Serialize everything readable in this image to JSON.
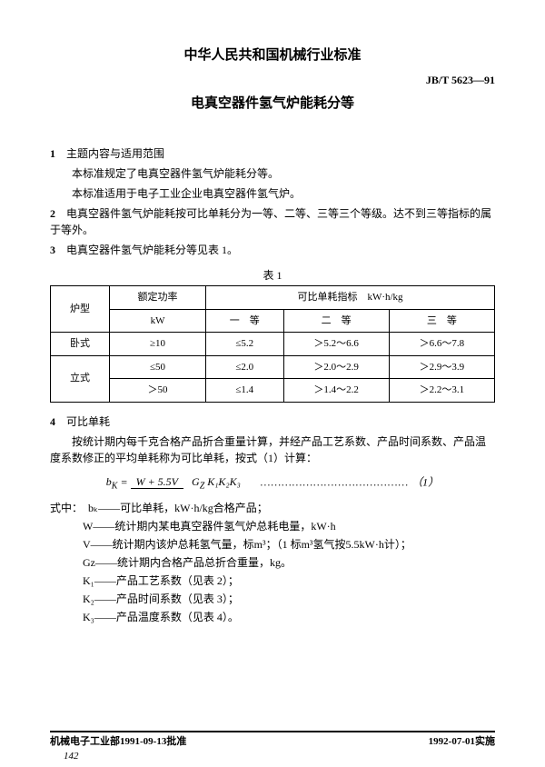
{
  "header": {
    "org_title": "中华人民共和国机械行业标准",
    "standard_code": "JB/T 5623—91",
    "doc_title": "电真空器件氢气炉能耗分等"
  },
  "sections": {
    "s1_num": "1",
    "s1_title": "主题内容与适用范围",
    "s1_p1": "本标准规定了电真空器件氢气炉能耗分等。",
    "s1_p2": "本标准适用于电子工业企业电真空器件氢气炉。",
    "s2_num": "2",
    "s2_text": "电真空器件氢气炉能耗按可比单耗分为一等、二等、三等三个等级。达不到三等指标的属于等外。",
    "s3_num": "3",
    "s3_text": "电真空器件氢气炉能耗分等见表 1。",
    "s4_num": "4",
    "s4_title": "可比单耗",
    "s4_p": "按统计期内每千克合格产品折合重量计算，并经产品工艺系数、产品时间系数、产品温度系数修正的平均单耗称为可比单耗，按式（1）计算："
  },
  "table": {
    "caption": "表 1",
    "h_furnace": "炉型",
    "h_power": "额定功率",
    "h_power_unit": "kW",
    "h_index": "可比单耗指标　kW·h/kg",
    "h_g1": "一　等",
    "h_g2": "二　等",
    "h_g3": "三　等",
    "r1_type": "卧式",
    "r1_pw": "≥10",
    "r1_g1": "≤5.2",
    "r1_g2": "＞5.2～6.6",
    "r1_g3": "＞6.6～7.8",
    "r2_type": "立式",
    "r2_pw": "≤50",
    "r2_g1": "≤2.0",
    "r2_g2": "＞2.0～2.9",
    "r2_g3": "＞2.9～3.9",
    "r3_pw": "＞50",
    "r3_g1": "≤1.4",
    "r3_g2": "＞1.4～2.2",
    "r3_g3": "＞2.2～3.1"
  },
  "formula": {
    "lhs": "b",
    "lhs_sub": "K",
    "eq": " = ",
    "num": "W + 5.5V",
    "den": "G",
    "den_sub": "Z",
    "den_rest": " K₁K₂K₃",
    "tag": "（1）"
  },
  "defs": {
    "lead": "式中：",
    "d1": "bₖ——可比单耗，kW·h/kg合格产品；",
    "d2": "W——统计期内某电真空器件氢气炉总耗电量，kW·h",
    "d3": "V——统计期内该炉总耗氢气量，标m³；（1 标m³氢气按5.5kW·h计）；",
    "d4": "Gz——统计期内合格产品总折合重量，kg。",
    "d5": "K₁——产品工艺系数（见表 2）；",
    "d6": "K₂——产品时间系数（见表 3）；",
    "d7": "K₃——产品温度系数（见表 4）。"
  },
  "footer": {
    "left": "机械电子工业部1991-09-13批准",
    "right": "1992-07-01实施",
    "page": "142"
  }
}
